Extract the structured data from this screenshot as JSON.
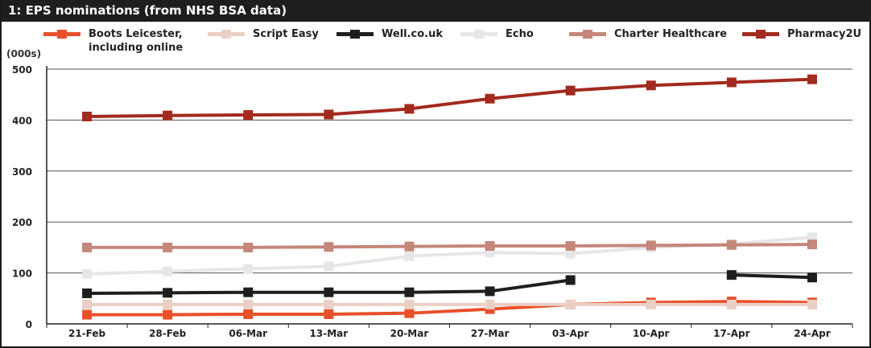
{
  "title": "1: EPS nominations (from NHS BSA data)",
  "chart_data": {
    "type": "line",
    "ylabel": "(000s)",
    "ylim": [
      0,
      500
    ],
    "yticks": [
      0,
      100,
      200,
      300,
      400,
      500
    ],
    "grid": true,
    "legend_position": "top",
    "categories": [
      "21-Feb",
      "28-Feb",
      "06-Mar",
      "13-Mar",
      "20-Mar",
      "27-Mar",
      "03-Apr",
      "10-Apr",
      "17-Apr",
      "24-Apr"
    ],
    "series": [
      {
        "name": "Boots Leicester,\nincluding online",
        "color": "#e8502a",
        "values": [
          18,
          18,
          19,
          19,
          21,
          29,
          38,
          42,
          44,
          42
        ]
      },
      {
        "name": "Script Easy",
        "color": "#ebcfc4",
        "values": [
          38,
          38,
          38,
          38,
          38,
          38,
          38,
          38,
          38,
          38
        ]
      },
      {
        "name": "Well.co.uk",
        "color": "#1e1e1e",
        "values": [
          60,
          61,
          62,
          62,
          62,
          64,
          86,
          null,
          96,
          91
        ]
      },
      {
        "name": "Echo",
        "color": "#e6e6e6",
        "values": [
          98,
          103,
          108,
          113,
          133,
          140,
          138,
          150,
          157,
          170
        ]
      },
      {
        "name": "Charter Healthcare",
        "color": "#c5877a",
        "values": [
          150,
          150,
          150,
          151,
          152,
          153,
          153,
          154,
          155,
          156
        ]
      },
      {
        "name": "Pharmacy2U",
        "color": "#a32a1e",
        "values": [
          407,
          409,
          410,
          411,
          422,
          442,
          458,
          468,
          474,
          480
        ]
      }
    ]
  }
}
